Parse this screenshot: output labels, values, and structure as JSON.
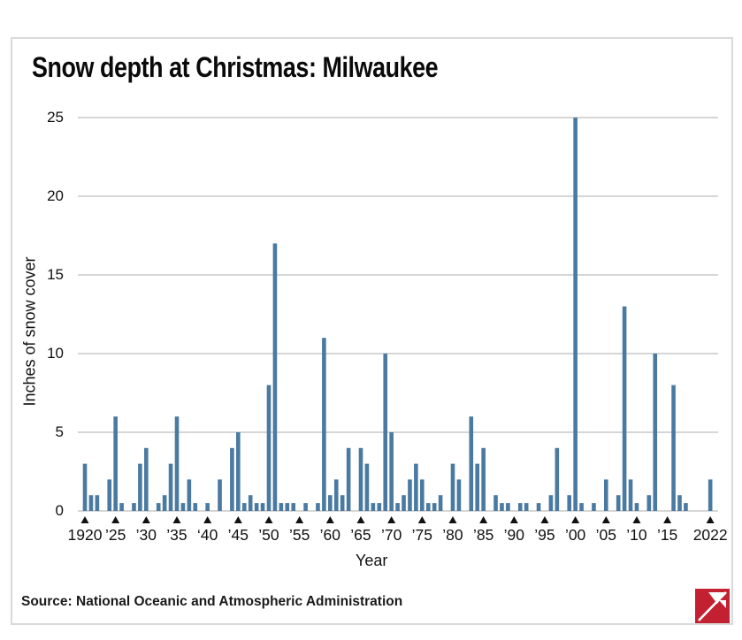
{
  "title": "Snow depth at Christmas: Milwaukee",
  "source": "Source: National Oceanic and Atmospheric Administration",
  "colors": {
    "bar": "#4a7aa2",
    "grid": "#c9c9c9",
    "tick_marker": "#111111",
    "border": "#d9d9d9",
    "logo_red": "#c32032",
    "text": "#111111"
  },
  "chart_data": {
    "type": "bar",
    "title": "Snow depth at Christmas: Milwaukee",
    "xlabel": "Year",
    "ylabel": "Inches of snow cover",
    "ylim": [
      0,
      25
    ],
    "yticks": [
      0,
      5,
      10,
      15,
      20,
      25
    ],
    "grid": "horizontal",
    "x_start": 1920,
    "x_end": 2022,
    "x_tick_years": [
      1920,
      1925,
      1930,
      1935,
      1940,
      1945,
      1950,
      1955,
      1960,
      1965,
      1970,
      1975,
      1980,
      1985,
      1990,
      1995,
      2000,
      2005,
      2010,
      2015,
      2022
    ],
    "x_tick_labels": [
      "1920",
      "’25",
      "’30",
      "’35",
      "‘40",
      "’45",
      "’50",
      "’55",
      "’60",
      "’65",
      "’70",
      "’75",
      "’80",
      "’85",
      "’90",
      "’95",
      "’00",
      "’05",
      "’10",
      "’15",
      "2022"
    ],
    "values": [
      3,
      1,
      1,
      0,
      2,
      6,
      0.5,
      0,
      0.5,
      3,
      4,
      0,
      0.5,
      1,
      3,
      6,
      0.5,
      2,
      0.5,
      0,
      0.5,
      0,
      2,
      0,
      4,
      5,
      0.5,
      1,
      0.5,
      0.5,
      8,
      17,
      0.5,
      0.5,
      0.5,
      0,
      0.5,
      0,
      0.5,
      11,
      1,
      2,
      1,
      4,
      0,
      4,
      3,
      0.5,
      0.5,
      10,
      5,
      0.5,
      1,
      2,
      3,
      2,
      0.5,
      0.5,
      1,
      0,
      3,
      2,
      0,
      6,
      3,
      4,
      0,
      1,
      0.5,
      0.5,
      0,
      0.5,
      0.5,
      0,
      0.5,
      0,
      1,
      4,
      0,
      1,
      25,
      0.5,
      0,
      0.5,
      0,
      2,
      0,
      1,
      13,
      2,
      0.5,
      0,
      1,
      10,
      0,
      0,
      8,
      1,
      0.5,
      0,
      0,
      0,
      2
    ]
  }
}
